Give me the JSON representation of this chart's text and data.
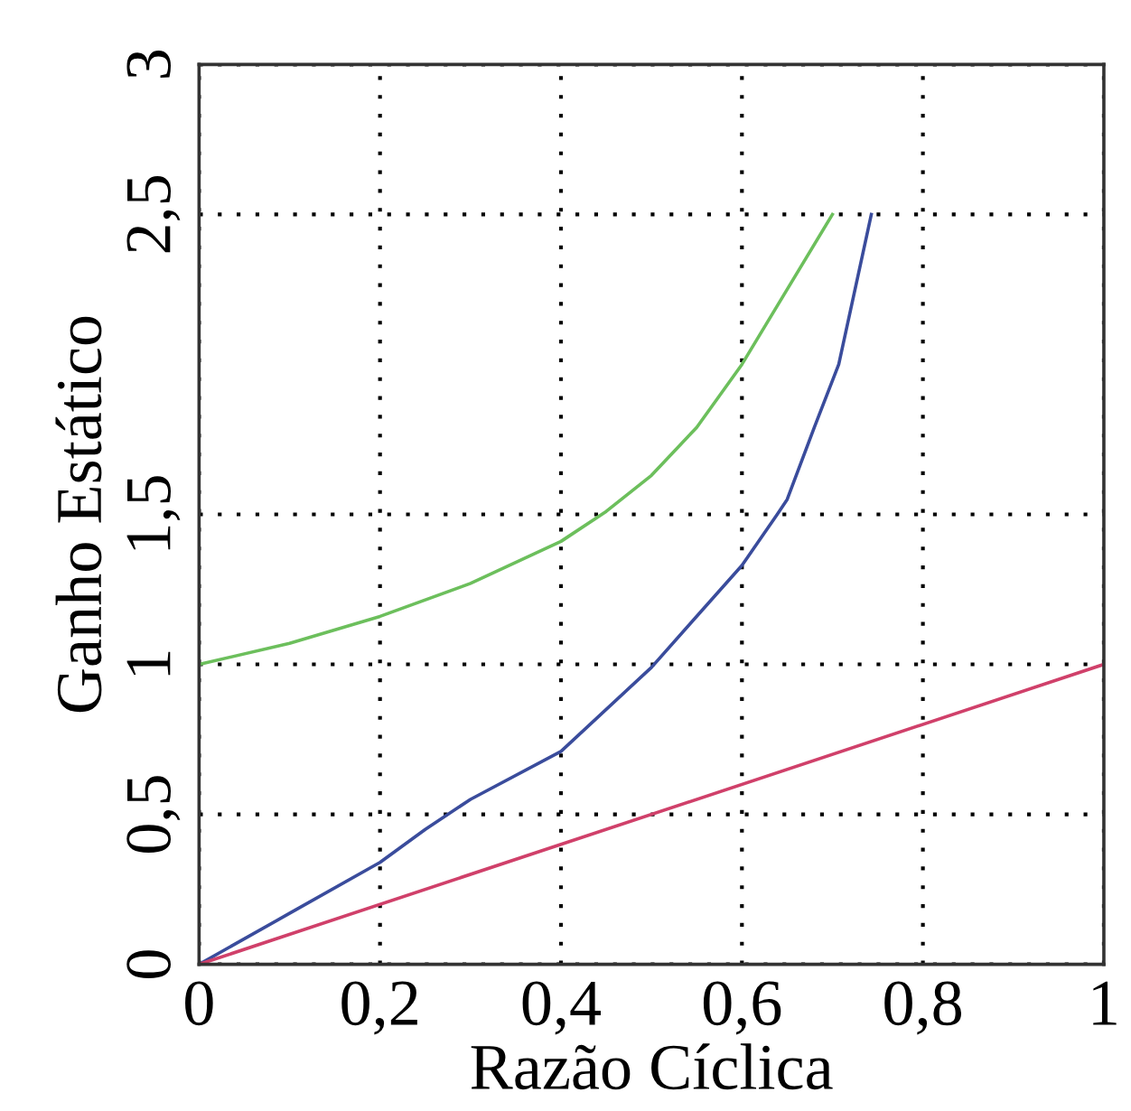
{
  "chart_data": {
    "type": "line",
    "xlabel": "Razão Cíclica",
    "ylabel": "Ganho Estático",
    "xlim": [
      0,
      1
    ],
    "xticks": [
      0,
      {
        "value": 0.2,
        "label": "0,2"
      },
      {
        "value": 0.4,
        "label": "0,4"
      },
      {
        "value": 0.6,
        "label": "0,6"
      },
      {
        "value": 0.8,
        "label": "0,8"
      },
      1
    ],
    "ylim": [
      0,
      3
    ],
    "yticks": [
      0,
      {
        "value": 0.5,
        "label": "0,5"
      },
      1,
      {
        "value": 1.5,
        "label": "1,5"
      },
      {
        "value": 2.5,
        "label": "2,5"
      },
      3
    ],
    "grid": true,
    "line_style": "solid",
    "series": [
      {
        "color": "#6cbf5c",
        "x": [
          0,
          0.1,
          0.2,
          0.3,
          0.4,
          0.45,
          0.5,
          0.55,
          0.6,
          0.65,
          0.7
        ],
        "values": [
          1.0,
          1.07,
          1.16,
          1.27,
          1.41,
          1.51,
          1.63,
          1.79,
          2.0,
          2.25,
          2.5
        ]
      },
      {
        "color": "#3a4c9c",
        "x": [
          0,
          0.1,
          0.2,
          0.25,
          0.3,
          0.4,
          0.5,
          0.6,
          0.639,
          0.65,
          0.68,
          0.707,
          0.743
        ],
        "values": [
          0,
          0.17,
          0.34,
          0.45,
          0.55,
          0.71,
          0.99,
          1.33,
          1.5,
          1.55,
          1.79,
          2.0,
          2.5
        ]
      },
      {
        "color": "#d0406a",
        "x": [
          0,
          1
        ],
        "values": [
          0,
          1
        ]
      }
    ]
  }
}
